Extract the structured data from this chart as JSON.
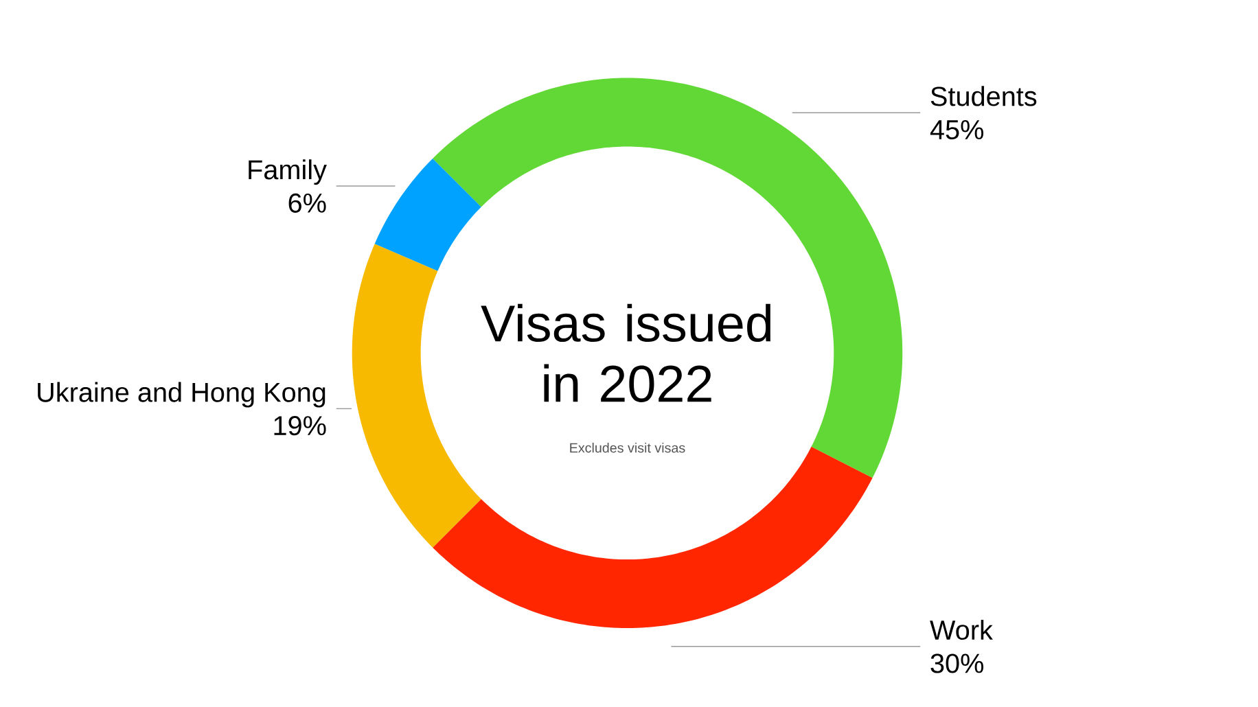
{
  "chart_data": {
    "type": "donut",
    "title": "Visas issued in 2022",
    "subtitle": "Excludes visit visas",
    "categories": [
      "Students",
      "Work",
      "Ukraine and Hong Kong",
      "Family"
    ],
    "values": [
      45,
      30,
      19,
      6
    ],
    "value_labels": [
      "45%",
      "30%",
      "19%",
      "6%"
    ],
    "colors": [
      "#62d836",
      "#ff2600",
      "#f7ba00",
      "#00a2ff"
    ]
  }
}
